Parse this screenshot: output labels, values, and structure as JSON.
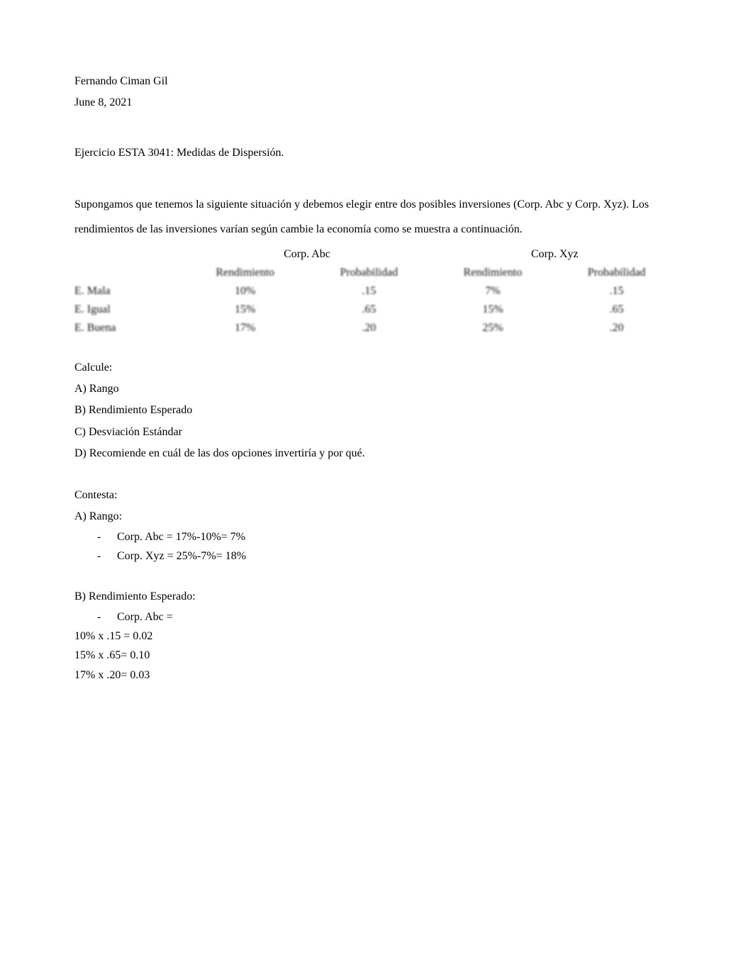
{
  "header": {
    "author": "Fernando Ciman Gil",
    "date": "June 8, 2021"
  },
  "title": "Ejercicio ESTA 3041: Medidas de Dispersión.",
  "intro": "Supongamos que tenemos la siguiente situación y debemos elegir entre dos posibles inversiones (Corp. Abc y Corp. Xyz). Los rendimientos de las inversiones varían según cambie la economía como se muestra a continuación.",
  "table": {
    "group_headers": [
      "Corp. Abc",
      "Corp. Xyz"
    ],
    "sub_headers": [
      "Rendimiento",
      "Probabilidad",
      "Rendimiento",
      "Probabilidad"
    ],
    "rows": [
      {
        "label": "E. Mala",
        "abc_r": "10%",
        "abc_p": ".15",
        "xyz_r": "7%",
        "xyz_p": ".15"
      },
      {
        "label": "E. Igual",
        "abc_r": "15%",
        "abc_p": ".65",
        "xyz_r": "15%",
        "xyz_p": ".65"
      },
      {
        "label": "E. Buena",
        "abc_r": "17%",
        "abc_p": ".20",
        "xyz_r": "25%",
        "xyz_p": ".20"
      }
    ]
  },
  "calcule_label": "Calcule:",
  "calc_items": {
    "a": "A) Rango",
    "b": "B) Rendimiento Esperado",
    "c": "C) Desviación Estándar",
    "d": "D) Recomiende en cuál de las dos opciones invertiría y por qué."
  },
  "contesta_label": "Contesta:",
  "answers": {
    "a_label": "A) Rango:",
    "a_items": [
      "Corp. Abc = 17%-10%= 7%",
      "Corp. Xyz = 25%-7%= 18%"
    ],
    "b_label": "B) Rendimiento Esperado:",
    "b_item": "Corp. Abc =",
    "b_calc": [
      "10% x .15 = 0.02",
      "15% x .65= 0.10",
      "17% x .20= 0.03"
    ]
  }
}
